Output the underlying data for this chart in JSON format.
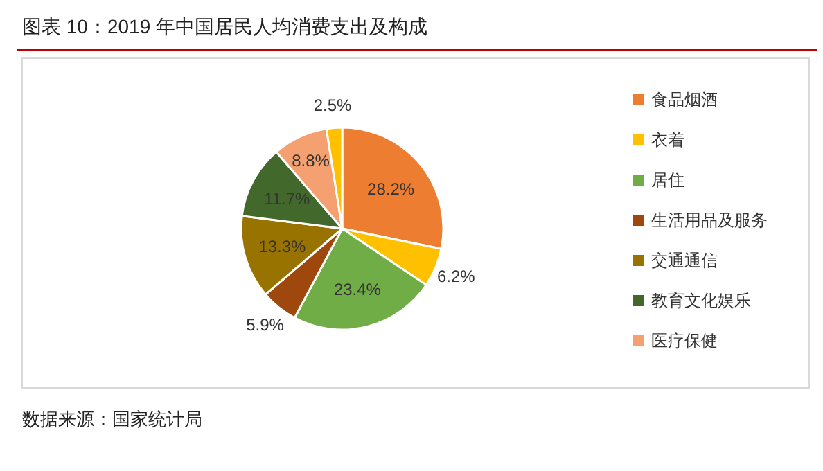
{
  "chart_data": {
    "type": "pie",
    "title": "图表 10：2019 年中国居民人均消费支出及构成",
    "categories": [
      "食品烟酒",
      "衣着",
      "居住",
      "生活用品及服务",
      "交通通信",
      "教育文化娱乐",
      "医疗保健",
      null
    ],
    "values": [
      28.2,
      6.2,
      23.4,
      5.9,
      13.3,
      11.7,
      8.8,
      2.5
    ],
    "colors": [
      "#ed7d31",
      "#ffc000",
      "#70ad47",
      "#9e480e",
      "#997300",
      "#43682b",
      "#f4a070",
      "#ffc000"
    ],
    "value_labels": [
      "28.2%",
      "6.2%",
      "23.4%",
      "5.9%",
      "13.3%",
      "11.7%",
      "8.8%",
      "2.5%"
    ],
    "legend": "right",
    "annotations": [
      "数据来源：国家统计局"
    ]
  }
}
